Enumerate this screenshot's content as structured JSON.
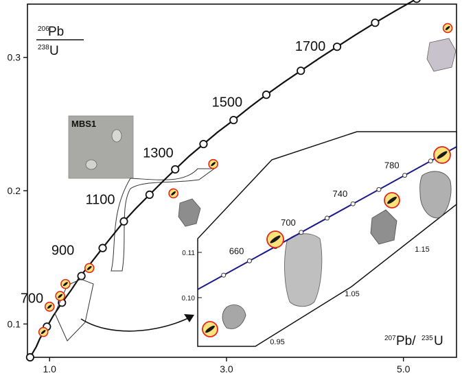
{
  "chart_data": {
    "type": "line",
    "title": "",
    "axes": {
      "xlim": [
        0.75,
        5.6
      ],
      "ylim": [
        0.075,
        0.34
      ],
      "x_ticks": [
        {
          "value": 1.0,
          "label": "1.0"
        },
        {
          "value": 3.0,
          "label": "3.0"
        },
        {
          "value": 5.0,
          "label": "5.0"
        }
      ],
      "y_ticks": [
        {
          "value": 0.1,
          "label": "0.1"
        },
        {
          "value": 0.2,
          "label": "0.2"
        },
        {
          "value": 0.3,
          "label": "0.3"
        }
      ],
      "ylabel_num_sup": "206",
      "ylabel_num": "Pb",
      "ylabel_den_sup": "238",
      "ylabel_den": "U",
      "xlabel_sup1": "207",
      "xlabel_mid": "Pb/",
      "xlabel_sup2": "235",
      "xlabel_end": "U",
      "grid": false
    },
    "concordia": {
      "color": "#111111",
      "x": [
        0.78,
        0.85,
        0.89,
        0.97,
        1.04,
        1.14,
        1.24,
        1.35,
        1.47,
        1.6,
        1.72,
        1.84,
        1.98,
        2.13,
        2.28,
        2.42,
        2.58,
        2.74,
        2.9,
        3.08,
        3.27,
        3.45,
        3.64,
        3.84,
        4.04,
        4.25,
        4.46,
        4.68,
        4.91,
        5.15,
        5.4,
        5.6
      ],
      "y": [
        0.075,
        0.083,
        0.089,
        0.098,
        0.106,
        0.116,
        0.125,
        0.136,
        0.146,
        0.157,
        0.167,
        0.177,
        0.187,
        0.197,
        0.207,
        0.216,
        0.226,
        0.235,
        0.244,
        0.253,
        0.263,
        0.272,
        0.281,
        0.29,
        0.299,
        0.308,
        0.317,
        0.326,
        0.335,
        0.344,
        0.353,
        0.36
      ],
      "age_markers": [
        {
          "x": 0.78,
          "y": 0.075
        },
        {
          "x": 0.97,
          "y": 0.098
        },
        {
          "x": 1.14,
          "y": 0.116
        },
        {
          "x": 1.36,
          "y": 0.136
        },
        {
          "x": 1.6,
          "y": 0.157
        },
        {
          "x": 1.84,
          "y": 0.177
        },
        {
          "x": 2.13,
          "y": 0.197
        },
        {
          "x": 2.42,
          "y": 0.216
        },
        {
          "x": 2.74,
          "y": 0.235
        },
        {
          "x": 3.08,
          "y": 0.253
        },
        {
          "x": 3.45,
          "y": 0.272
        },
        {
          "x": 3.84,
          "y": 0.29
        },
        {
          "x": 4.25,
          "y": 0.308
        },
        {
          "x": 4.68,
          "y": 0.326
        },
        {
          "x": 5.15,
          "y": 0.344
        }
      ],
      "age_labels": [
        {
          "text": "700",
          "x": 0.93,
          "y": 0.116
        },
        {
          "text": "900",
          "x": 1.28,
          "y": 0.152
        },
        {
          "text": "1100",
          "x": 1.74,
          "y": 0.19
        },
        {
          "text": "1300",
          "x": 2.4,
          "y": 0.225
        },
        {
          "text": "1500",
          "x": 3.18,
          "y": 0.263
        },
        {
          "text": "1700",
          "x": 4.12,
          "y": 0.305
        }
      ]
    },
    "data_points": [
      {
        "x": 0.93,
        "y": 0.094
      },
      {
        "x": 1.0,
        "y": 0.113
      },
      {
        "x": 1.12,
        "y": 0.121
      },
      {
        "x": 1.18,
        "y": 0.13
      },
      {
        "x": 1.45,
        "y": 0.142
      },
      {
        "x": 2.4,
        "y": 0.198
      },
      {
        "x": 2.85,
        "y": 0.22
      },
      {
        "x": 5.5,
        "y": 0.322
      }
    ],
    "inset": {
      "label": "MBS1",
      "title": "",
      "concordia_color": "#1a1a8c",
      "y_ticks": [
        {
          "value": 0.1,
          "label": "0.10"
        },
        {
          "value": 0.11,
          "label": "0.11"
        }
      ],
      "x_ticks": [
        {
          "value": 0.95,
          "label": "0.95"
        },
        {
          "value": 1.05,
          "label": "1.05"
        },
        {
          "value": 1.15,
          "label": "1.15"
        }
      ],
      "age_labels": [
        {
          "text": "660",
          "value": 660
        },
        {
          "text": "700",
          "value": 700
        },
        {
          "text": "740",
          "value": 740
        },
        {
          "text": "780",
          "value": 780
        }
      ]
    }
  }
}
